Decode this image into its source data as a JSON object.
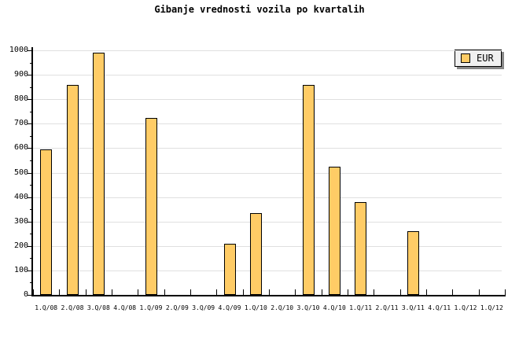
{
  "title": "Gibanje vrednosti vozila po kvartalih",
  "legend": {
    "label": "EUR"
  },
  "colors": {
    "background": "#FFFFFF",
    "bar_fill": "#FFCC66",
    "bar_border": "#000000",
    "grid": "#E0E0E0",
    "axis": "#000000",
    "text": "#000000",
    "legend_bg": "#F0F0F0",
    "legend_shadow": "#888888"
  },
  "chart_data": {
    "type": "bar",
    "title": "Gibanje vrednosti vozila po kvartalih",
    "categories": [
      "1.Q/08",
      "2.Q/08",
      "3.Q/08",
      "4.Q/08",
      "1.Q/09",
      "2.Q/09",
      "3.Q/09",
      "4.Q/09",
      "1.Q/10",
      "2.Q/10",
      "3.Q/10",
      "4.Q/10",
      "1.Q/11",
      "2.Q/11",
      "3.Q/11",
      "4.Q/11",
      "1.Q/12",
      "1.Q/12"
    ],
    "series": [
      {
        "name": "EUR",
        "values": [
          595,
          860,
          990,
          0,
          725,
          0,
          0,
          210,
          335,
          0,
          860,
          525,
          380,
          0,
          260,
          0,
          0,
          0
        ]
      }
    ],
    "xlabel": "",
    "ylabel": "",
    "ylim": [
      0,
      1000
    ],
    "ytick_step": 100,
    "ytick_minor_step": 50,
    "grid": true,
    "legend_position": "top-right"
  }
}
